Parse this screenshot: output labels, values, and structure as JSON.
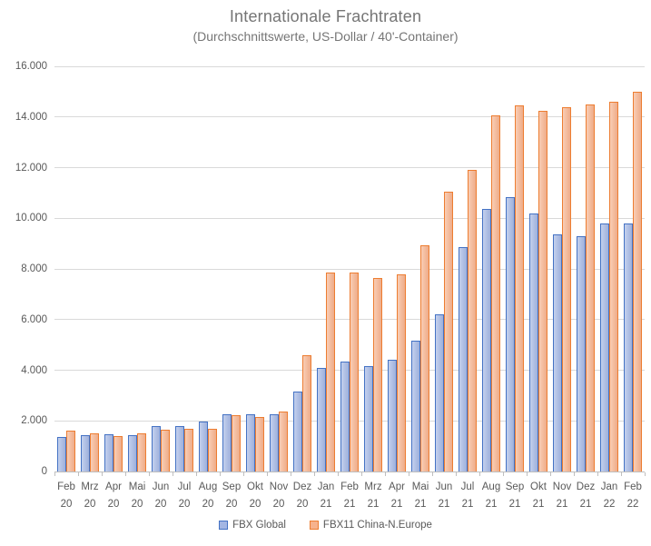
{
  "chart_data": {
    "type": "bar",
    "title": "Internationale Frachtraten",
    "subtitle": "(Durchschnittswerte, US-Dollar / 40'-Container)",
    "categories": [
      "Feb 20",
      "Mrz 20",
      "Apr 20",
      "Mai 20",
      "Jun 20",
      "Jul 20",
      "Aug 20",
      "Sep 20",
      "Okt 20",
      "Nov 20",
      "Dez 20",
      "Jan 21",
      "Feb 21",
      "Mrz 21",
      "Apr 21",
      "Mai 21",
      "Jun 21",
      "Jul 21",
      "Aug 21",
      "Sep 21",
      "Okt 21",
      "Nov 21",
      "Dez 21",
      "Jan 22",
      "Feb 22"
    ],
    "series": [
      {
        "name": "FBX Global",
        "values": [
          1350,
          1430,
          1460,
          1450,
          1780,
          1800,
          1990,
          2260,
          2250,
          2250,
          3150,
          4100,
          4350,
          4150,
          4400,
          5150,
          6200,
          8850,
          10350,
          10850,
          10200,
          9350,
          9300,
          9800,
          9800
        ]
      },
      {
        "name": "FBX11 China-N.Europe",
        "values": [
          1600,
          1500,
          1400,
          1510,
          1650,
          1690,
          1700,
          2210,
          2150,
          2350,
          4600,
          7850,
          7850,
          7650,
          7800,
          8950,
          11050,
          11900,
          14050,
          14450,
          14250,
          14400,
          14500,
          14600,
          15000
        ]
      }
    ],
    "xlabel": "",
    "ylabel": "",
    "ylim": [
      0,
      16000
    ],
    "ytick_step": 2000,
    "ytick_labels": [
      "0",
      "2.000",
      "4.000",
      "6.000",
      "8.000",
      "10.000",
      "12.000",
      "14.000",
      "16.000"
    ],
    "grid": true,
    "legend_position": "bottom"
  },
  "colors": {
    "series1_fill": "#A3B6E3",
    "series1_border": "#4472C4",
    "series2_fill": "#F6B28D",
    "series2_border": "#ED7D31",
    "grid": "#D9D9D9",
    "axis": "#BFBFBF",
    "text": "#595959",
    "title_text": "#757575"
  }
}
